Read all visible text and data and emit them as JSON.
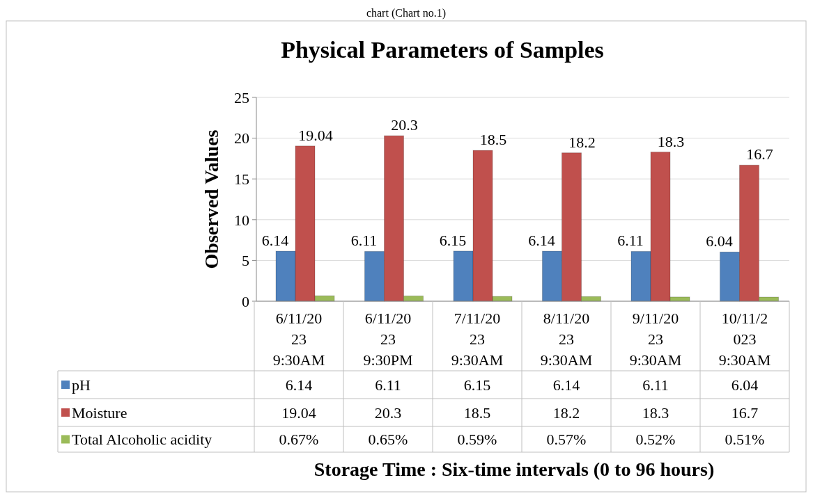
{
  "chart_data": {
    "type": "bar",
    "title": "Physical Parameters of  Samples",
    "xlabel": "Storage Time : Six-time intervals (0 to 96 hours)",
    "ylabel": "Observed Values",
    "annotations": [
      "chart (Chart no.1)"
    ],
    "categories": [
      "6/11/2023 9:30AM",
      "6/11/2023 9:30PM",
      "7/11/2023 9:30AM",
      "8/11/2023 9:30AM",
      "9/11/2023 9:30AM",
      "10/11/2023 9:30AM"
    ],
    "series": [
      {
        "name": "pH",
        "color": "#4f81bd",
        "values": [
          6.14,
          6.11,
          6.15,
          6.14,
          6.11,
          6.04
        ],
        "data_labels": true,
        "value_labels": [
          "6.14",
          "6.11",
          "6.15",
          "6.14",
          "6.11",
          "6.04"
        ]
      },
      {
        "name": "Moisture",
        "color": "#c0504d",
        "values": [
          19.04,
          20.3,
          18.5,
          18.2,
          18.3,
          16.7
        ],
        "data_labels": true,
        "value_labels": [
          "19.04",
          "20.3",
          "18.5",
          "18.2",
          "18.3",
          "16.7"
        ]
      },
      {
        "name": "Total Alcoholic acidity",
        "color": "#9bbb59",
        "values": [
          0.67,
          0.65,
          0.59,
          0.57,
          0.52,
          0.51
        ],
        "value_labels": [
          "0.67%",
          "0.65%",
          "0.59%",
          "0.57%",
          "0.52%",
          "0.51%"
        ]
      }
    ],
    "ylim": [
      0,
      25
    ],
    "yticks": [
      0,
      5,
      10,
      15,
      20,
      25
    ],
    "grid": "y",
    "legend": "bottom left",
    "data_labels": true
  }
}
